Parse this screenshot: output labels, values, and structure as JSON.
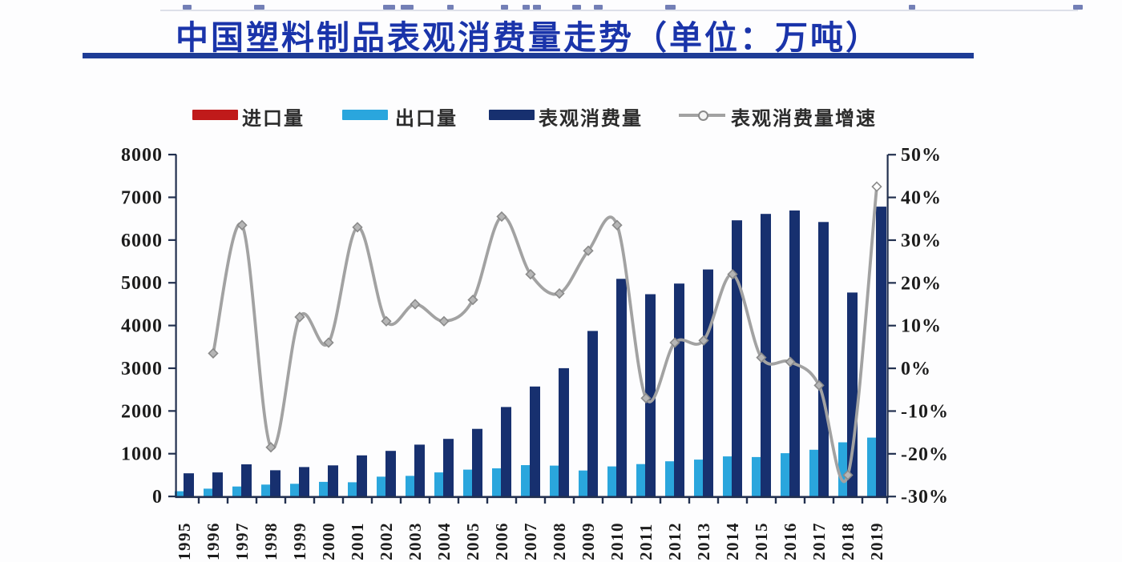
{
  "title": {
    "text": "中国塑料制品表观消费量走势（单位：万吨）"
  },
  "legend": {
    "items": [
      {
        "key": "import",
        "label": "进口量",
        "color": "#c01a1a",
        "kind": "bar"
      },
      {
        "key": "export",
        "label": "出口量",
        "color": "#2aa6dd",
        "kind": "bar"
      },
      {
        "key": "consumption",
        "label": "表观消费量",
        "color": "#17306f",
        "kind": "bar"
      },
      {
        "key": "growth",
        "label": "表观消费量增速",
        "color": "#a2a2a2",
        "kind": "line"
      }
    ]
  },
  "chart_data": {
    "type": "bar",
    "subtype": "grouped bars with secondary-axis line",
    "title": "中国塑料制品表观消费量走势（单位：万吨）",
    "categories": [
      "1995",
      "1996",
      "1997",
      "1998",
      "1999",
      "2000",
      "2001",
      "2002",
      "2003",
      "2004",
      "2005",
      "2006",
      "2007",
      "2008",
      "2009",
      "2010",
      "2011",
      "2012",
      "2013",
      "2014",
      "2015",
      "2016",
      "2017",
      "2018",
      "2019"
    ],
    "series": [
      {
        "key": "import",
        "name": "进口量",
        "type": "bar",
        "axis": "left",
        "color": "#c01a1a",
        "values": [
          0,
          0,
          0,
          0,
          0,
          0,
          0,
          0,
          0,
          0,
          0,
          0,
          0,
          0,
          0,
          0,
          0,
          0,
          0,
          0,
          0,
          0,
          0,
          0,
          0
        ]
      },
      {
        "key": "export",
        "name": "出口量",
        "type": "bar",
        "axis": "left",
        "color": "#2aa6dd",
        "values": [
          120,
          180,
          230,
          275,
          295,
          340,
          330,
          460,
          480,
          560,
          625,
          655,
          730,
          720,
          605,
          700,
          755,
          820,
          860,
          935,
          920,
          1010,
          1090,
          1265,
          1375
        ]
      },
      {
        "key": "consumption",
        "name": "表观消费量",
        "type": "bar",
        "axis": "left",
        "color": "#17306f",
        "values": [
          540,
          560,
          750,
          610,
          685,
          725,
          960,
          1065,
          1210,
          1345,
          1580,
          2090,
          2570,
          3000,
          3870,
          5090,
          4730,
          4980,
          5310,
          6460,
          6610,
          6690,
          6420,
          4770,
          6780
        ]
      },
      {
        "key": "growth",
        "name": "表观消费量增速",
        "type": "line",
        "axis": "right",
        "color": "#a2a2a2",
        "values": [
          null,
          3.5,
          33.5,
          -18.5,
          12,
          6,
          33,
          11,
          15,
          11,
          16,
          35.5,
          22,
          17.5,
          27.5,
          33.5,
          -7,
          6,
          6.5,
          22,
          2.5,
          1.5,
          -4,
          -25,
          42.5
        ]
      }
    ],
    "left_axis": {
      "min": 0,
      "max": 8000,
      "step": 1000,
      "tick_labels": [
        "0",
        "1000",
        "2000",
        "3000",
        "4000",
        "5000",
        "6000",
        "7000",
        "8000"
      ]
    },
    "right_axis": {
      "min": -30,
      "max": 50,
      "step": 10,
      "tick_labels": [
        "-30%",
        "-20%",
        "-10%",
        "0%",
        "10%",
        "20%",
        "30%",
        "40%",
        "50%"
      ]
    },
    "legend_position": "top",
    "grid": false
  }
}
